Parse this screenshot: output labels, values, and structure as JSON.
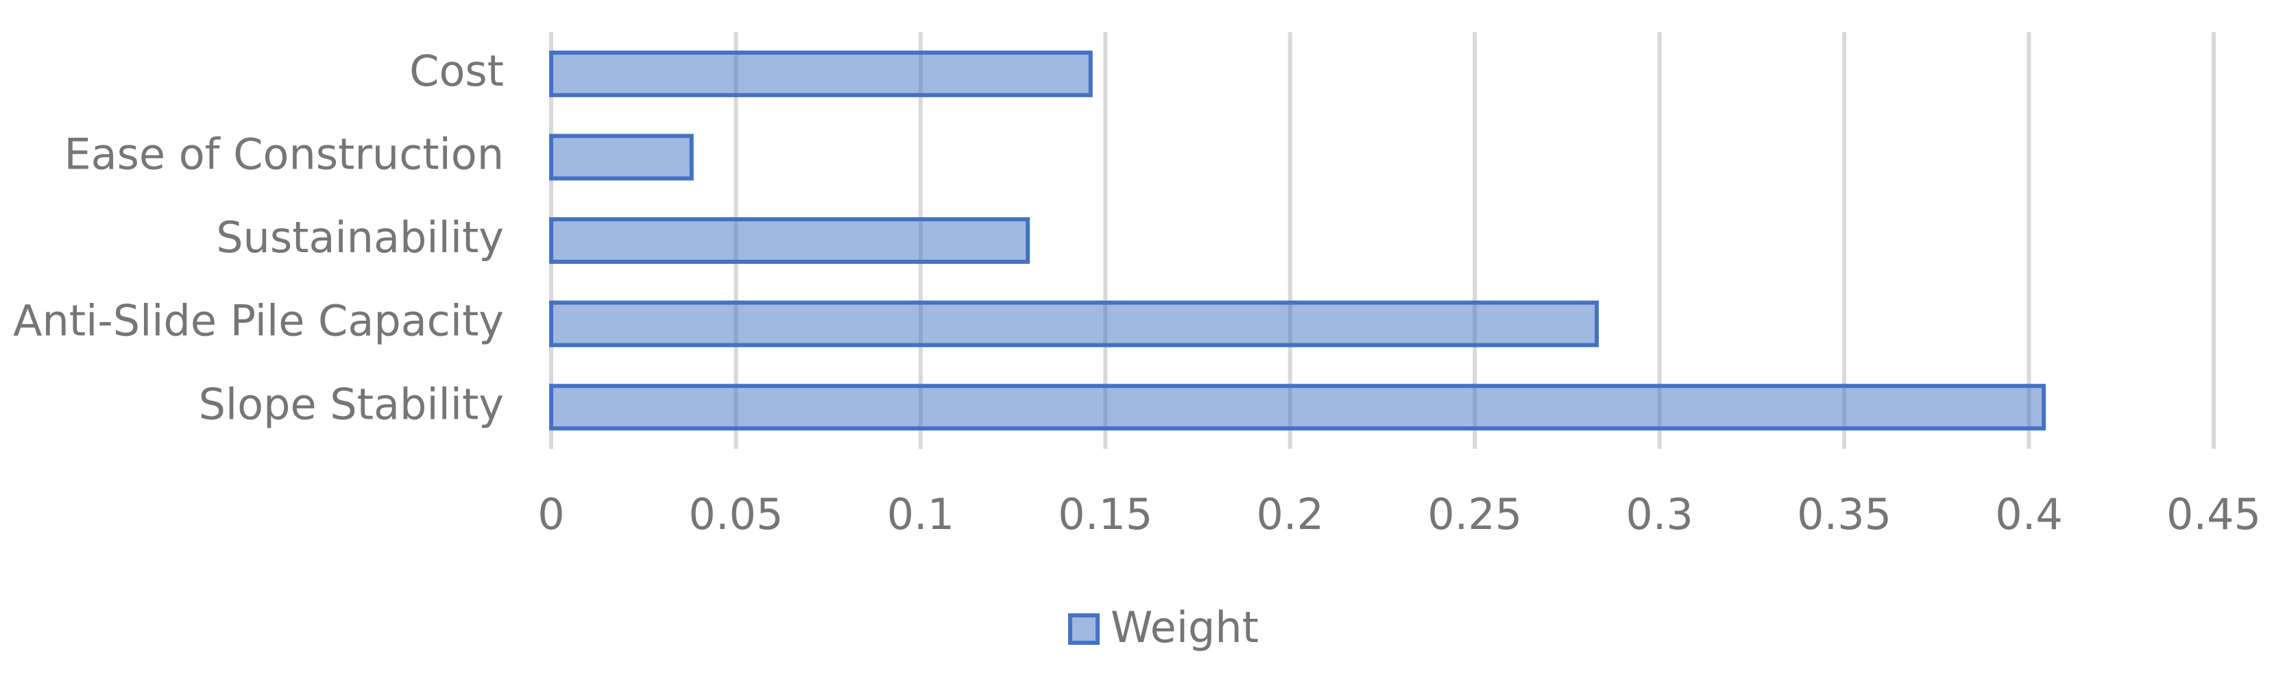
{
  "chart_data": {
    "type": "bar",
    "orientation": "horizontal",
    "categories": [
      "Cost",
      "Ease of Construction",
      "Sustainability",
      "Anti-Slide Pile Capacity",
      "Slope Stability"
    ],
    "series": [
      {
        "name": "Weight",
        "color": "#4472c4",
        "values": [
          0.146,
          0.038,
          0.129,
          0.283,
          0.404
        ]
      }
    ],
    "xlim": [
      0,
      0.45
    ],
    "xticks": [
      0,
      0.05,
      0.1,
      0.15,
      0.2,
      0.25,
      0.3,
      0.35,
      0.4,
      0.45
    ],
    "grid": true,
    "legend": "bottom"
  }
}
